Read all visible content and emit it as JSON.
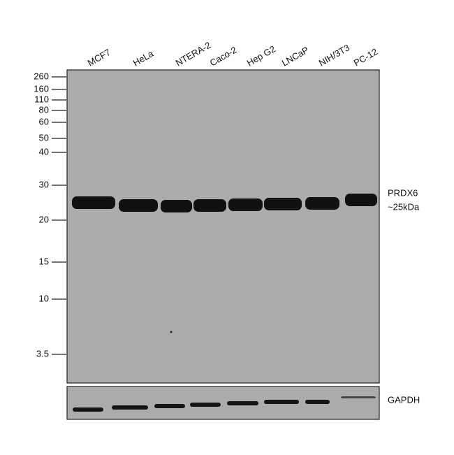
{
  "lanes": [
    "MCF7",
    "HeLa",
    "NTERA-2",
    "Caco-2",
    "Hep G2",
    "LNCaP",
    "NIH/3T3",
    "PC-12"
  ],
  "markers": [
    "260",
    "160",
    "110",
    "80",
    "60",
    "50",
    "40",
    "30",
    "20",
    "15",
    "10",
    "3.5"
  ],
  "target_label": "PRDX6",
  "target_size": "~25kDa",
  "control_label": "GAPDH"
}
